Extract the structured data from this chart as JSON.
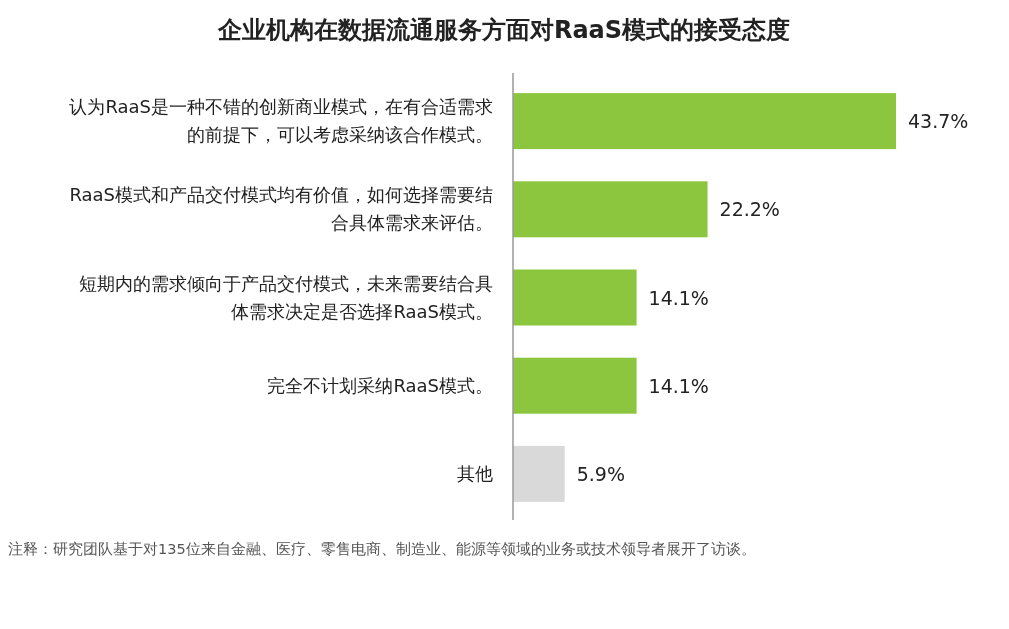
{
  "chart_data": {
    "type": "bar",
    "orientation": "horizontal",
    "title": "企业机构在数据流通服务方面对RaaS模式的接受态度",
    "categories": [
      "认为RaaS是一种不错的创新商业模式，在有合适需求的前提下，可以考虑采纳该合作模式。",
      "RaaS模式和产品交付模式均有价值，如何选择需要结合具体需求来评估。",
      "短期内的需求倾向于产品交付模式，未来需要结合具体需求决定是否选择RaaS模式。",
      "完全不计划采纳RaaS模式。",
      "其他"
    ],
    "values": [
      43.7,
      22.2,
      14.1,
      14.1,
      5.9
    ],
    "value_labels": [
      "43.7%",
      "22.2%",
      "14.1%",
      "14.1%",
      "5.9%"
    ],
    "colors": [
      "#8cc63f",
      "#8cc63f",
      "#8cc63f",
      "#8cc63f",
      "#d9d9d9"
    ],
    "annotations": [
      "注释：研究团队基于对135位来自金融、医疗、零售电商、制造业、能源等领域的业务或技术领导者展开了访谈。"
    ]
  }
}
